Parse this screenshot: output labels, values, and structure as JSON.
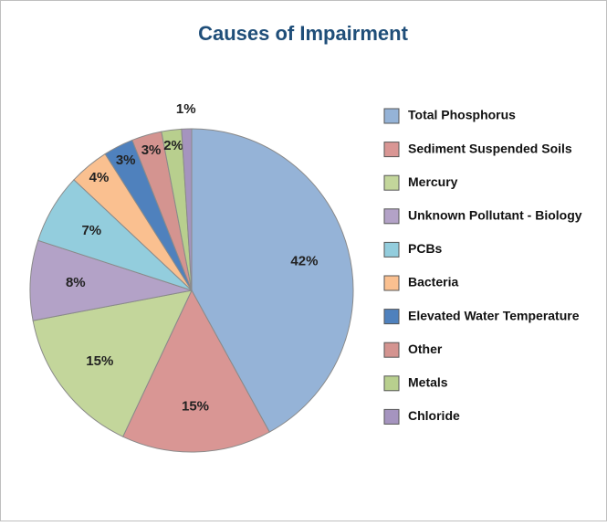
{
  "chart_data": {
    "type": "pie",
    "title": "Causes of Impairment",
    "categories": [
      "Total Phosphorus",
      "Sediment Suspended Soils",
      "Mercury",
      "Unknown Pollutant - Biology",
      "PCBs",
      "Bacteria",
      "Elevated Water Temperature",
      "Other",
      "Metals",
      "Chloride"
    ],
    "values": [
      42,
      15,
      15,
      8,
      7,
      4,
      3,
      3,
      2,
      1
    ],
    "value_labels": [
      "42%",
      "15%",
      "15%",
      "8%",
      "7%",
      "4%",
      "3%",
      "3%",
      "2%",
      "1%"
    ],
    "colors": [
      "#95b3d7",
      "#d99694",
      "#c3d69b",
      "#b3a2c7",
      "#93cddd",
      "#fac090",
      "#4f81bd",
      "#d49490",
      "#b8cf8e",
      "#a594bf"
    ],
    "legend": "right"
  }
}
